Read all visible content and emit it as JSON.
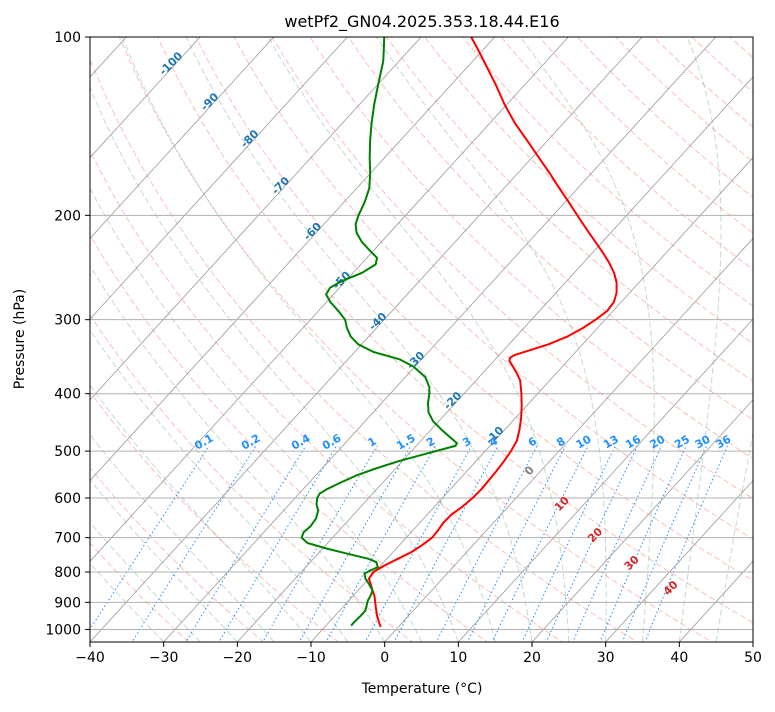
{
  "chart_data": {
    "type": "line",
    "title": "wetPf2_GN04.2025.353.18.44.E16",
    "xlabel": "Temperature (°C)",
    "ylabel": "Pressure (hPa)",
    "xlim": [
      -40,
      50
    ],
    "ylim": [
      1050,
      100
    ],
    "y_scale": "log",
    "skew": true,
    "grid": true,
    "x_ticks": [
      -40,
      -30,
      -20,
      -10,
      0,
      10,
      20,
      30,
      40,
      50
    ],
    "x_tick_labels": [
      "−40",
      "−30",
      "−20",
      "−10",
      "0",
      "10",
      "20",
      "30",
      "40",
      "50"
    ],
    "y_ticks": [
      1000,
      900,
      800,
      700,
      600,
      500,
      400,
      300,
      200,
      100
    ],
    "y_tick_labels": [
      "1000",
      "900",
      "800",
      "700",
      "600",
      "500",
      "400",
      "300",
      "200",
      "100"
    ],
    "dry_adiabat_labels": [
      "-100",
      "-90",
      "-80",
      "-70",
      "-60",
      "-50",
      "-40",
      "-30",
      "-20",
      "-10"
    ],
    "mixing_ratio_labels": [
      "0.1",
      "0.2",
      "0.4",
      "0.6",
      "1",
      "1.5",
      "2",
      "3",
      "4",
      "6",
      "8",
      "10",
      "13",
      "16",
      "20",
      "25",
      "30",
      "36"
    ],
    "moist_adiabat_labels": [
      "0",
      "10",
      "20",
      "30",
      "40"
    ],
    "series": [
      {
        "color": "#ff0000",
        "points": [
          [
            990,
            -2.4
          ],
          [
            975,
            -3.1
          ],
          [
            950,
            -4.2
          ],
          [
            920,
            -5.4
          ],
          [
            900,
            -6.2
          ],
          [
            880,
            -7.0
          ],
          [
            860,
            -8.0
          ],
          [
            840,
            -9.0
          ],
          [
            820,
            -10.0
          ],
          [
            800,
            -10.2
          ],
          [
            780,
            -9.5
          ],
          [
            760,
            -8.5
          ],
          [
            740,
            -7.5
          ],
          [
            720,
            -6.9
          ],
          [
            700,
            -6.5
          ],
          [
            680,
            -6.6
          ],
          [
            660,
            -6.8
          ],
          [
            640,
            -6.7
          ],
          [
            620,
            -6.2
          ],
          [
            600,
            -5.9
          ],
          [
            580,
            -5.8
          ],
          [
            560,
            -5.9
          ],
          [
            540,
            -6.0
          ],
          [
            520,
            -6.2
          ],
          [
            500,
            -6.5
          ],
          [
            480,
            -7.0
          ],
          [
            460,
            -8.0
          ],
          [
            440,
            -9.2
          ],
          [
            420,
            -10.6
          ],
          [
            400,
            -12.2
          ],
          [
            380,
            -14.0
          ],
          [
            370,
            -15.3
          ],
          [
            360,
            -16.7
          ],
          [
            352,
            -17.9
          ],
          [
            348,
            -18.2
          ],
          [
            344,
            -17.9
          ],
          [
            338,
            -16.5
          ],
          [
            330,
            -14.6
          ],
          [
            320,
            -13.0
          ],
          [
            310,
            -12.0
          ],
          [
            300,
            -11.3
          ],
          [
            290,
            -10.8
          ],
          [
            280,
            -11.0
          ],
          [
            270,
            -11.8
          ],
          [
            260,
            -13.0
          ],
          [
            250,
            -14.6
          ],
          [
            240,
            -16.6
          ],
          [
            230,
            -18.9
          ],
          [
            220,
            -21.4
          ],
          [
            210,
            -24.0
          ],
          [
            200,
            -26.7
          ],
          [
            190,
            -29.5
          ],
          [
            180,
            -32.5
          ],
          [
            170,
            -35.6
          ],
          [
            160,
            -39.0
          ],
          [
            150,
            -42.6
          ],
          [
            140,
            -46.5
          ],
          [
            130,
            -50.3
          ],
          [
            120,
            -54.1
          ],
          [
            110,
            -58.4
          ],
          [
            104,
            -61.2
          ],
          [
            100,
            -63.2
          ]
        ]
      },
      {
        "color": "#008000",
        "points": [
          [
            985,
            -6.6
          ],
          [
            970,
            -6.6
          ],
          [
            950,
            -6.5
          ],
          [
            930,
            -6.5
          ],
          [
            910,
            -7.0
          ],
          [
            895,
            -7.4
          ],
          [
            880,
            -7.6
          ],
          [
            860,
            -8.0
          ],
          [
            840,
            -9.2
          ],
          [
            820,
            -10.5
          ],
          [
            805,
            -11.2
          ],
          [
            795,
            -10.8
          ],
          [
            785,
            -10.2
          ],
          [
            770,
            -11.0
          ],
          [
            760,
            -12.5
          ],
          [
            745,
            -16.0
          ],
          [
            730,
            -19.5
          ],
          [
            715,
            -22.7
          ],
          [
            700,
            -24.2
          ],
          [
            685,
            -24.6
          ],
          [
            670,
            -24.4
          ],
          [
            650,
            -24.6
          ],
          [
            630,
            -25.3
          ],
          [
            615,
            -26.3
          ],
          [
            600,
            -27.0
          ],
          [
            590,
            -27.2
          ],
          [
            580,
            -26.8
          ],
          [
            565,
            -25.7
          ],
          [
            550,
            -24.5
          ],
          [
            535,
            -22.7
          ],
          [
            520,
            -20.5
          ],
          [
            505,
            -17.7
          ],
          [
            495,
            -15.7
          ],
          [
            490,
            -14.7
          ],
          [
            485,
            -14.8
          ],
          [
            475,
            -16.3
          ],
          [
            460,
            -18.6
          ],
          [
            445,
            -20.8
          ],
          [
            430,
            -22.5
          ],
          [
            415,
            -23.7
          ],
          [
            400,
            -24.7
          ],
          [
            390,
            -25.5
          ],
          [
            375,
            -27.3
          ],
          [
            360,
            -30.2
          ],
          [
            350,
            -33.0
          ],
          [
            340,
            -37.5
          ],
          [
            330,
            -40.5
          ],
          [
            320,
            -42.5
          ],
          [
            310,
            -44.0
          ],
          [
            300,
            -45.3
          ],
          [
            290,
            -47.3
          ],
          [
            280,
            -49.5
          ],
          [
            272,
            -51.0
          ],
          [
            265,
            -51.3
          ],
          [
            258,
            -50.5
          ],
          [
            250,
            -48.8
          ],
          [
            242,
            -48.0
          ],
          [
            236,
            -48.6
          ],
          [
            230,
            -50.3
          ],
          [
            222,
            -52.6
          ],
          [
            214,
            -54.5
          ],
          [
            207,
            -55.7
          ],
          [
            200,
            -56.4
          ],
          [
            190,
            -57.2
          ],
          [
            180,
            -58.3
          ],
          [
            170,
            -60.0
          ],
          [
            160,
            -62.0
          ],
          [
            150,
            -64.0
          ],
          [
            140,
            -66.0
          ],
          [
            130,
            -68.0
          ],
          [
            120,
            -70.0
          ],
          [
            110,
            -72.1
          ],
          [
            105,
            -73.5
          ],
          [
            100,
            -75.0
          ]
        ]
      }
    ]
  }
}
